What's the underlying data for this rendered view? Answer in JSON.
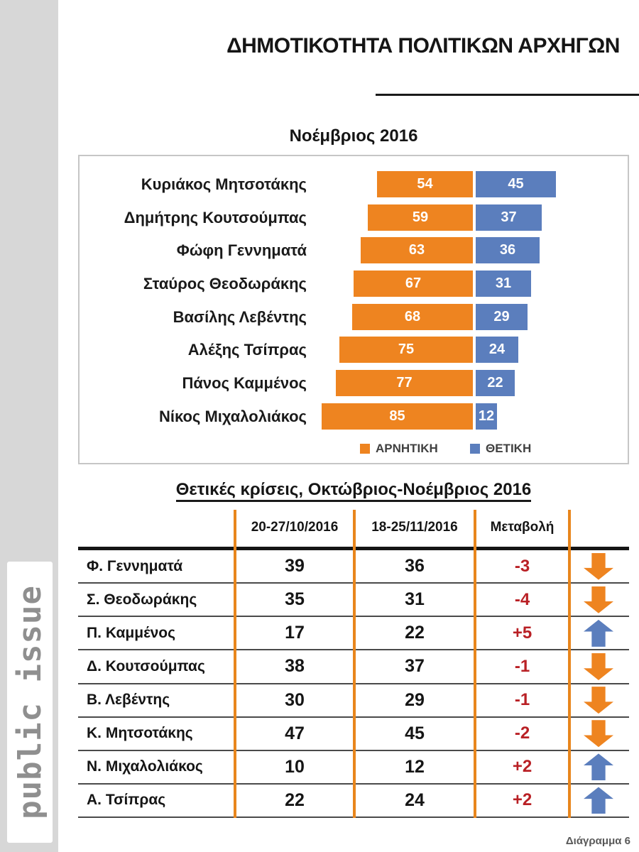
{
  "header": {
    "title": "ΔΗΜΟΤΙΚΟΤΗΤΑ ΠΟΛΙΤΙΚΩΝ ΑΡΧΗΓΩΝ"
  },
  "logo": {
    "text": "public issue"
  },
  "footer": {
    "label": "Διάγραμμα 6"
  },
  "colors": {
    "negative": "#EE8420",
    "positive": "#5B7EBD",
    "grid_line": "#E8861D",
    "change_text": "#B92025",
    "separator": "#4a4a4a",
    "sidebar": "#D7D7D7",
    "logo_text": "#8F8F8F"
  },
  "chart_data": [
    {
      "type": "bar",
      "orientation": "horizontal-diverging",
      "title": "Νοέμβριος 2016",
      "categories": [
        "Κυριάκος Μητσοτάκης",
        "Δημήτρης Κουτσούμπας",
        "Φώφη Γεννηματά",
        "Σταύρος Θεοδωράκης",
        "Βασίλης Λεβέντης",
        "Αλέξης Τσίπρας",
        "Πάνος Καμμένος",
        "Νίκος Μιχαλολιάκος"
      ],
      "series": [
        {
          "name": "ΑΡΝΗΤΙΚΗ",
          "color": "#EE8420",
          "values": [
            54,
            59,
            63,
            67,
            68,
            75,
            77,
            85
          ]
        },
        {
          "name": "ΘΕΤΙΚΗ",
          "color": "#5B7EBD",
          "values": [
            45,
            37,
            36,
            31,
            29,
            24,
            22,
            12
          ]
        }
      ],
      "value_range": [
        0,
        100
      ],
      "data_labels": "inside-white",
      "legend_position": "bottom-center",
      "grid": false
    },
    {
      "type": "table",
      "title": "Θετικές κρίσεις, Οκτώβριος-Νοέμβριος 2016",
      "columns": [
        "20-27/10/2016",
        "18-25/11/2016",
        "Μεταβολή"
      ],
      "rows": [
        {
          "name": "Φ. Γεννηματά",
          "oct": 39,
          "nov": 36,
          "change": "-3",
          "direction": "down"
        },
        {
          "name": "Σ. Θεοδωράκης",
          "oct": 35,
          "nov": 31,
          "change": "-4",
          "direction": "down"
        },
        {
          "name": "Π. Καμμένος",
          "oct": 17,
          "nov": 22,
          "change": "+5",
          "direction": "up"
        },
        {
          "name": "Δ. Κουτσούμπας",
          "oct": 38,
          "nov": 37,
          "change": "-1",
          "direction": "down"
        },
        {
          "name": "Β. Λεβέντης",
          "oct": 30,
          "nov": 29,
          "change": "-1",
          "direction": "down"
        },
        {
          "name": "Κ. Μητσοτάκης",
          "oct": 47,
          "nov": 45,
          "change": "-2",
          "direction": "down"
        },
        {
          "name": "Ν. Μιχαλολιάκος",
          "oct": 10,
          "nov": 12,
          "change": "+2",
          "direction": "up"
        },
        {
          "name": "Α. Τσίπρας",
          "oct": 22,
          "nov": 24,
          "change": "+2",
          "direction": "up"
        }
      ]
    }
  ]
}
